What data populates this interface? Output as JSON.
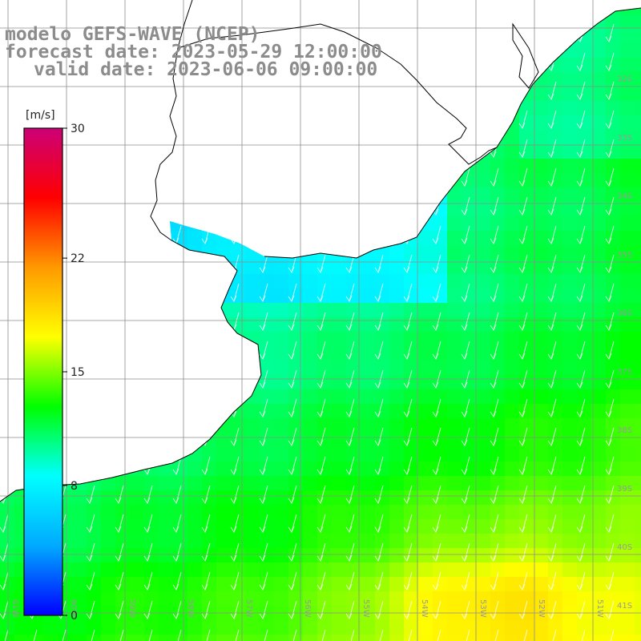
{
  "title": {
    "model": "modelo GEFS-WAVE (NCEP)",
    "forecast": "forecast date: 2023-05-29 12:00:00",
    "valid": "valid date: 2023-06-06 09:00:00"
  },
  "colorbar": {
    "unit_label": "[m/s]",
    "ticks": [
      "30",
      "22",
      "15",
      "8",
      "0"
    ],
    "tick_values": [
      30,
      22,
      15,
      8,
      0
    ],
    "range": [
      0,
      30
    ],
    "colors": [
      "#0000ff",
      "#00aaff",
      "#00ffff",
      "#00ff00",
      "#ffff00",
      "#ff9900",
      "#ff0000",
      "#cc0077"
    ]
  },
  "map": {
    "lon_labels": [
      "61W",
      "60W",
      "59W",
      "58W",
      "57W",
      "56W",
      "55W",
      "54W",
      "53W",
      "52W",
      "51W"
    ],
    "lat_labels": [
      "32S",
      "33S",
      "34S",
      "35S",
      "36S",
      "37S",
      "38S",
      "39S",
      "40S",
      "41S"
    ],
    "arrow_direction": "south-southwest",
    "land_color": "#ffffff",
    "grid_color": "#8c8c8c"
  }
}
